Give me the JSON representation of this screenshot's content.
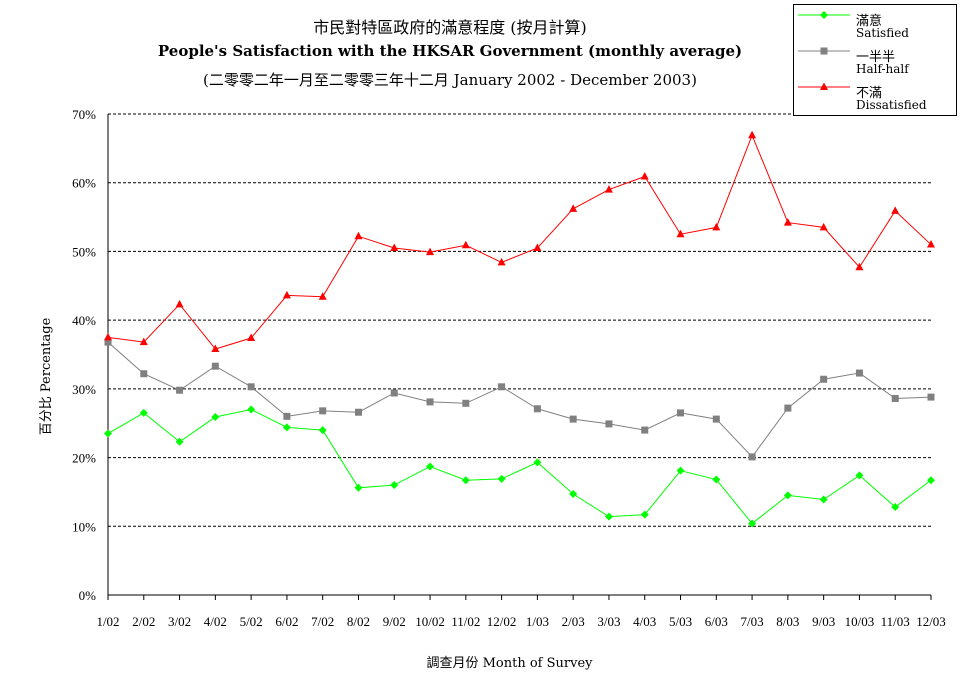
{
  "title_zh": "市民對特區政府的滿意程度 (按月計算)",
  "title_en": "People's Satisfaction with the HKSAR Government (monthly average)",
  "subtitle": "(二零零二年一月至二零零三年十二月 January 2002 - December 2003)",
  "legend": [
    {
      "zh": "滿意",
      "en": "Satisfied"
    },
    {
      "zh": "一半半",
      "en": "Half-half"
    },
    {
      "zh": "不滿",
      "en": "Dissatisfied"
    }
  ],
  "chart_data": {
    "type": "line",
    "title": "People's Satisfaction with the HKSAR Government (monthly average)",
    "xlabel": "調查月份 Month of Survey",
    "ylabel": "百分比 Percentage",
    "ylim": [
      0,
      70
    ],
    "ytick_labels": [
      "0%",
      "10%",
      "20%",
      "30%",
      "40%",
      "50%",
      "60%",
      "70%"
    ],
    "grid": "horizontal dashed",
    "legend_position": "top-right",
    "categories": [
      "1/02",
      "2/02",
      "3/02",
      "4/02",
      "5/02",
      "6/02",
      "7/02",
      "8/02",
      "9/02",
      "10/02",
      "11/02",
      "12/02",
      "1/03",
      "2/03",
      "3/03",
      "4/03",
      "5/03",
      "6/03",
      "7/03",
      "8/03",
      "9/03",
      "10/03",
      "11/03",
      "12/03"
    ],
    "series": [
      {
        "name": "滿意 Satisfied",
        "color": "#00ff00",
        "marker": "diamond",
        "values": [
          23.5,
          26.5,
          22.3,
          25.9,
          27.0,
          24.4,
          24.0,
          15.6,
          16.0,
          18.7,
          16.7,
          16.9,
          19.3,
          14.7,
          11.4,
          11.7,
          18.1,
          16.8,
          10.4,
          14.5,
          13.9,
          17.4,
          12.8,
          16.7
        ]
      },
      {
        "name": "一半半 Half-half",
        "color": "#808080",
        "marker": "square",
        "values": [
          36.8,
          32.2,
          29.8,
          33.3,
          30.3,
          26.0,
          26.8,
          26.6,
          29.4,
          28.1,
          27.9,
          30.3,
          27.1,
          25.6,
          24.9,
          24.0,
          26.5,
          25.6,
          20.1,
          27.2,
          31.4,
          32.3,
          28.6,
          28.8
        ]
      },
      {
        "name": "不滿 Dissatisfied",
        "color": "#ff0000",
        "marker": "triangle",
        "values": [
          37.5,
          36.8,
          42.3,
          35.8,
          37.4,
          43.6,
          43.4,
          52.2,
          50.5,
          49.9,
          50.9,
          48.4,
          50.5,
          56.2,
          59.0,
          60.9,
          52.5,
          53.5,
          66.9,
          54.2,
          53.5,
          47.7,
          55.9,
          51.0
        ]
      }
    ]
  }
}
